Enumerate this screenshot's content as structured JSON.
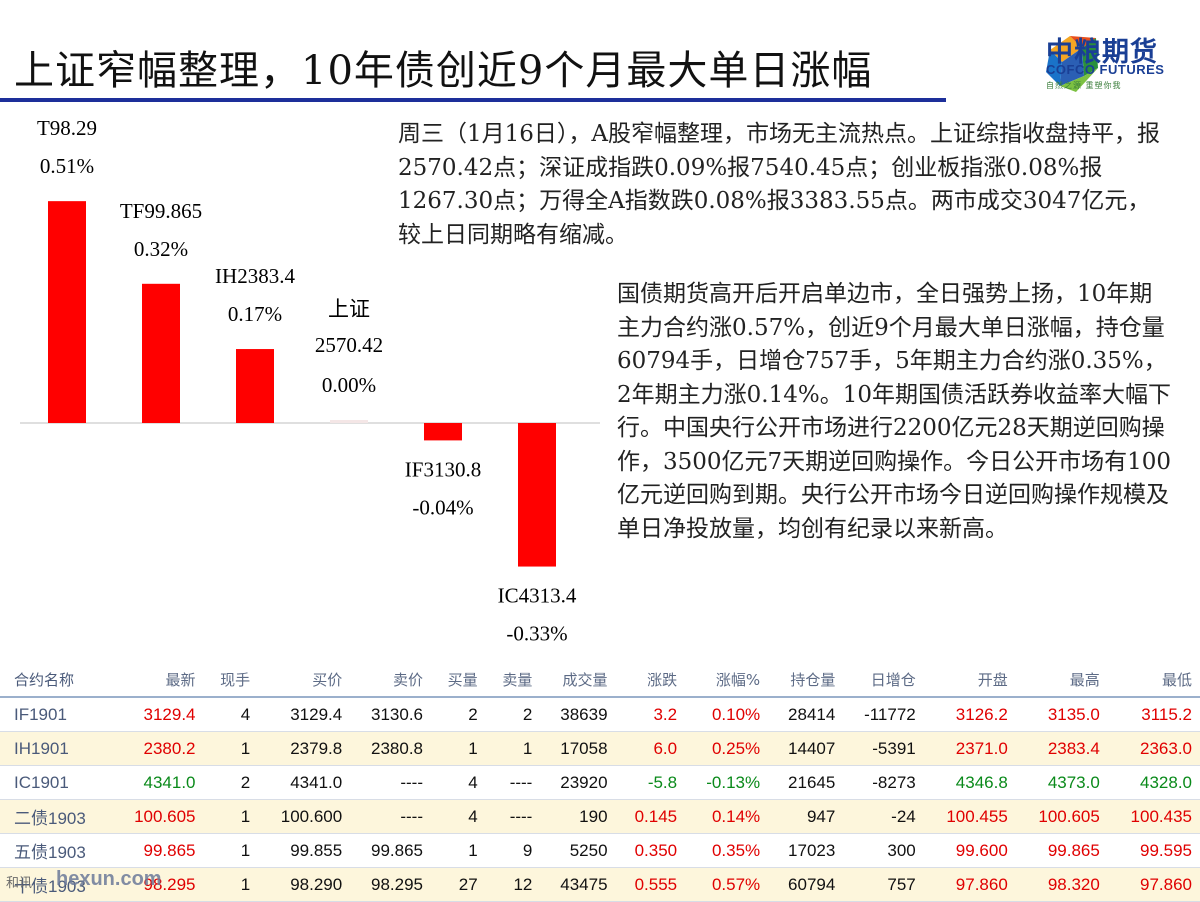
{
  "header": {
    "title": "上证窄幅整理，10年债创近9个月最大单日涨幅",
    "logo_cn": "中粮期货",
    "logo_en": "COFCO FUTURES",
    "logo_tagline": "自然之源 重塑你我"
  },
  "chart_data": {
    "type": "bar",
    "categories": [
      "T98.29",
      "TF99.865",
      "IH2383.4",
      "上证 2570.42",
      "IF3130.8",
      "IC4313.4"
    ],
    "values": [
      0.51,
      0.32,
      0.17,
      0.0,
      -0.04,
      -0.33
    ],
    "name_labels": [
      [
        "T98.29"
      ],
      [
        "TF99.865"
      ],
      [
        "IH2383.4"
      ],
      [
        "上证",
        "2570.42"
      ],
      [
        "IF3130.8"
      ],
      [
        "IC4313.4"
      ]
    ],
    "value_labels": [
      "0.51%",
      "0.32%",
      "0.17%",
      "0.00%",
      "-0.04%",
      "-0.33%"
    ],
    "unit": "%",
    "bar_color": "#ff0000",
    "ylim": [
      -0.33,
      0.51
    ],
    "grid": false,
    "title": "",
    "xlabel": "",
    "ylabel": ""
  },
  "text": {
    "para1": "周三（1月16日），A股窄幅整理，市场无主流热点。上证综指收盘持平，报2570.42点；深证成指跌0.09%报7540.45点；创业板指涨0.08%报1267.30点；万得全A指数跌0.08%报3383.55点。两市成交3047亿元，较上日同期略有缩减。",
    "para2": "国债期货高开后开启单边市，全日强势上扬，10年期主力合约涨0.57%，创近9个月最大单日涨幅，持仓量60794手，日增仓757手，5年期主力合约涨0.35%，2年期主力涨0.14%。10年期国债活跃券收益率大幅下行。中国央行公开市场进行2200亿元28天期逆回购操作，3500亿元7天期逆回购操作。今日公开市场有100亿元逆回购到期。央行公开市场今日逆回购操作规模及单日净投放量，均创有纪录以来新高。"
  },
  "table": {
    "headers": [
      "合约名称",
      "最新",
      "现手",
      "买价",
      "卖价",
      "买量",
      "卖量",
      "成交量",
      "涨跌",
      "涨幅%",
      "持仓量",
      "日增仓",
      "开盘",
      "最高",
      "最低"
    ],
    "rows": [
      {
        "cells": [
          "IF1901",
          "3129.4",
          "4",
          "3129.4",
          "3130.6",
          "2",
          "2",
          "38639",
          "3.2",
          "0.10%",
          "28414",
          "-11772",
          "3126.2",
          "3135.0",
          "3115.2"
        ],
        "trend": "up"
      },
      {
        "cells": [
          "IH1901",
          "2380.2",
          "1",
          "2379.8",
          "2380.8",
          "1",
          "1",
          "17058",
          "6.0",
          "0.25%",
          "14407",
          "-5391",
          "2371.0",
          "2383.4",
          "2363.0"
        ],
        "trend": "up"
      },
      {
        "cells": [
          "IC1901",
          "4341.0",
          "2",
          "4341.0",
          "----",
          "4",
          "----",
          "23920",
          "-5.8",
          "-0.13%",
          "21645",
          "-8273",
          "4346.8",
          "4373.0",
          "4328.0"
        ],
        "trend": "down"
      },
      {
        "cells": [
          "二债1903",
          "100.605",
          "1",
          "100.600",
          "----",
          "4",
          "----",
          "190",
          "0.145",
          "0.14%",
          "947",
          "-24",
          "100.455",
          "100.605",
          "100.435"
        ],
        "trend": "up"
      },
      {
        "cells": [
          "五债1903",
          "99.865",
          "1",
          "99.855",
          "99.865",
          "1",
          "9",
          "5250",
          "0.350",
          "0.35%",
          "17023",
          "300",
          "99.600",
          "99.865",
          "99.595"
        ],
        "trend": "up"
      },
      {
        "cells": [
          "十债1903",
          "98.295",
          "1",
          "98.290",
          "98.295",
          "27",
          "12",
          "43475",
          "0.555",
          "0.57%",
          "60794",
          "757",
          "97.860",
          "98.320",
          "97.860"
        ],
        "trend": "up"
      }
    ]
  },
  "watermark": {
    "badge": "和讯",
    "site": "hexun.com"
  }
}
